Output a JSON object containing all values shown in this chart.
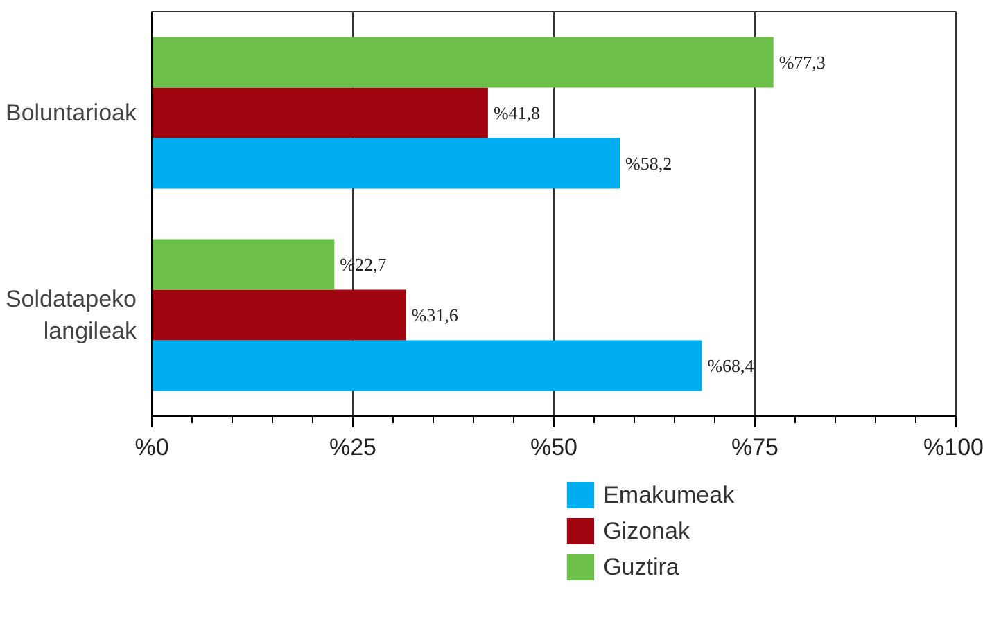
{
  "chart_data": {
    "type": "bar",
    "orientation": "horizontal",
    "categories": [
      "Boluntarioak",
      "Soldatapeko langileak"
    ],
    "series": [
      {
        "name": "Emakumeak",
        "color": "#00aeef",
        "values": [
          58.2,
          68.4
        ],
        "value_labels": [
          "%58,2",
          "%68,4"
        ]
      },
      {
        "name": "Gizonak",
        "color": "#a0050f",
        "values": [
          41.8,
          31.6
        ],
        "value_labels": [
          "%41,8",
          "%31,6"
        ]
      },
      {
        "name": "Guztira",
        "color": "#6cc04a",
        "values": [
          77.3,
          22.7
        ],
        "value_labels": [
          "%77,3",
          "%22,7"
        ]
      }
    ],
    "xlim": [
      0,
      100
    ],
    "xticks": [
      {
        "value": 0,
        "label": "%0"
      },
      {
        "value": 25,
        "label": "%25"
      },
      {
        "value": 50,
        "label": "%50"
      },
      {
        "value": 75,
        "label": "%75"
      },
      {
        "value": 100,
        "label": "%100"
      }
    ],
    "grid": "x",
    "legend": "bottom"
  }
}
